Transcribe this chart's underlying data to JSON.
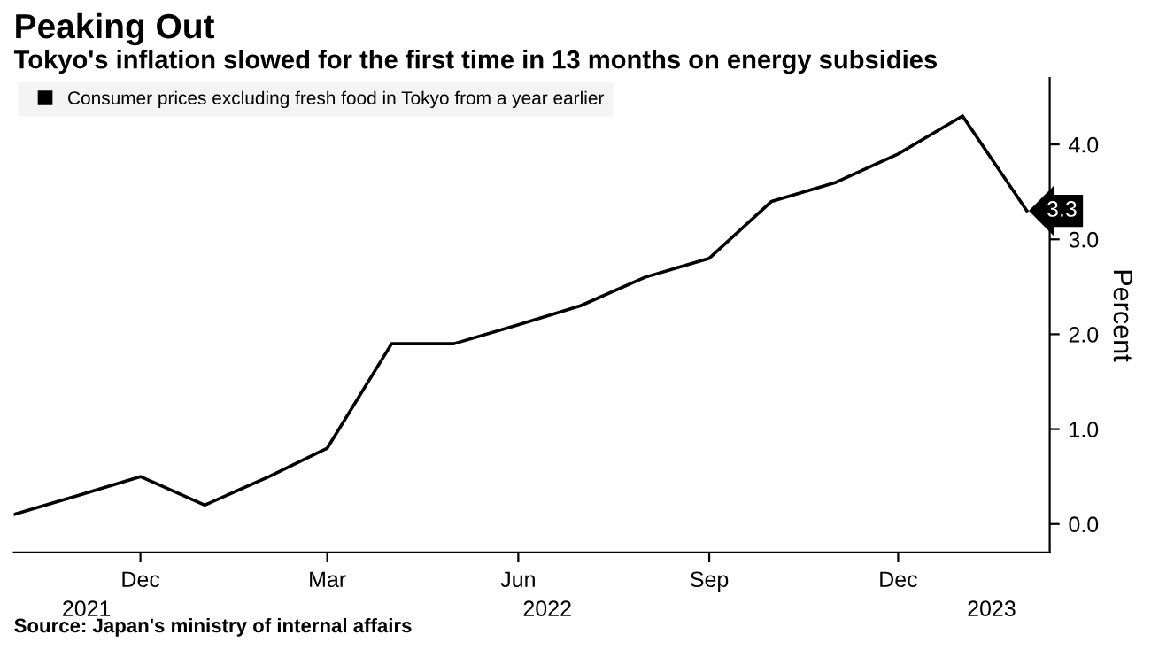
{
  "chart_data": {
    "type": "line",
    "title": "Peaking Out",
    "subtitle": "Tokyo's inflation slowed for the first time in 13 months on energy subsidies",
    "ylabel": "Percent",
    "annotations": [
      "Source: Japan's ministry of internal affairs"
    ],
    "x": [
      "2021-10",
      "2021-11",
      "2021-12",
      "2022-01",
      "2022-02",
      "2022-03",
      "2022-04",
      "2022-05",
      "2022-06",
      "2022-07",
      "2022-08",
      "2022-09",
      "2022-10",
      "2022-11",
      "2022-12",
      "2023-01",
      "2023-02"
    ],
    "series": [
      {
        "name": "Consumer prices excluding fresh food in Tokyo from a year earlier",
        "color": "#000000",
        "values": [
          0.1,
          0.3,
          0.5,
          0.2,
          0.5,
          0.8,
          1.9,
          1.9,
          2.1,
          2.3,
          2.6,
          2.8,
          3.4,
          3.6,
          3.9,
          4.3,
          3.3
        ],
        "value_labels": [
          null,
          null,
          null,
          null,
          null,
          null,
          null,
          null,
          null,
          null,
          null,
          null,
          null,
          null,
          null,
          null,
          "3.3"
        ]
      }
    ],
    "xlim": [
      "2021-10-01",
      "2023-02-12"
    ],
    "xticks": [
      {
        "value": "2021-12-01",
        "label": "Dec"
      },
      {
        "value": "2022-03-01",
        "label": "Mar"
      },
      {
        "value": "2022-06-01",
        "label": "Jun"
      },
      {
        "value": "2022-09-01",
        "label": "Sep"
      },
      {
        "value": "2022-12-01",
        "label": "Dec"
      }
    ],
    "x2lim": [
      "2021-10-01",
      "2023-02-12"
    ],
    "x2ticks": [
      {
        "value": "2021-11-05",
        "label": "2021"
      },
      {
        "value": "2022-06-15",
        "label": "2022"
      },
      {
        "value": "2023-01-15",
        "label": "2023"
      }
    ],
    "ylim": [
      -0.3,
      4.7
    ],
    "yticks": [
      {
        "value": 0,
        "label": "0.0"
      },
      {
        "value": 1,
        "label": "1.0"
      },
      {
        "value": 2,
        "label": "2.0"
      },
      {
        "value": 3,
        "label": "3.0"
      },
      {
        "value": 4,
        "label": "4.0"
      }
    ],
    "grid": false,
    "legend": "top left",
    "marker": "none",
    "line_style": "solid"
  }
}
